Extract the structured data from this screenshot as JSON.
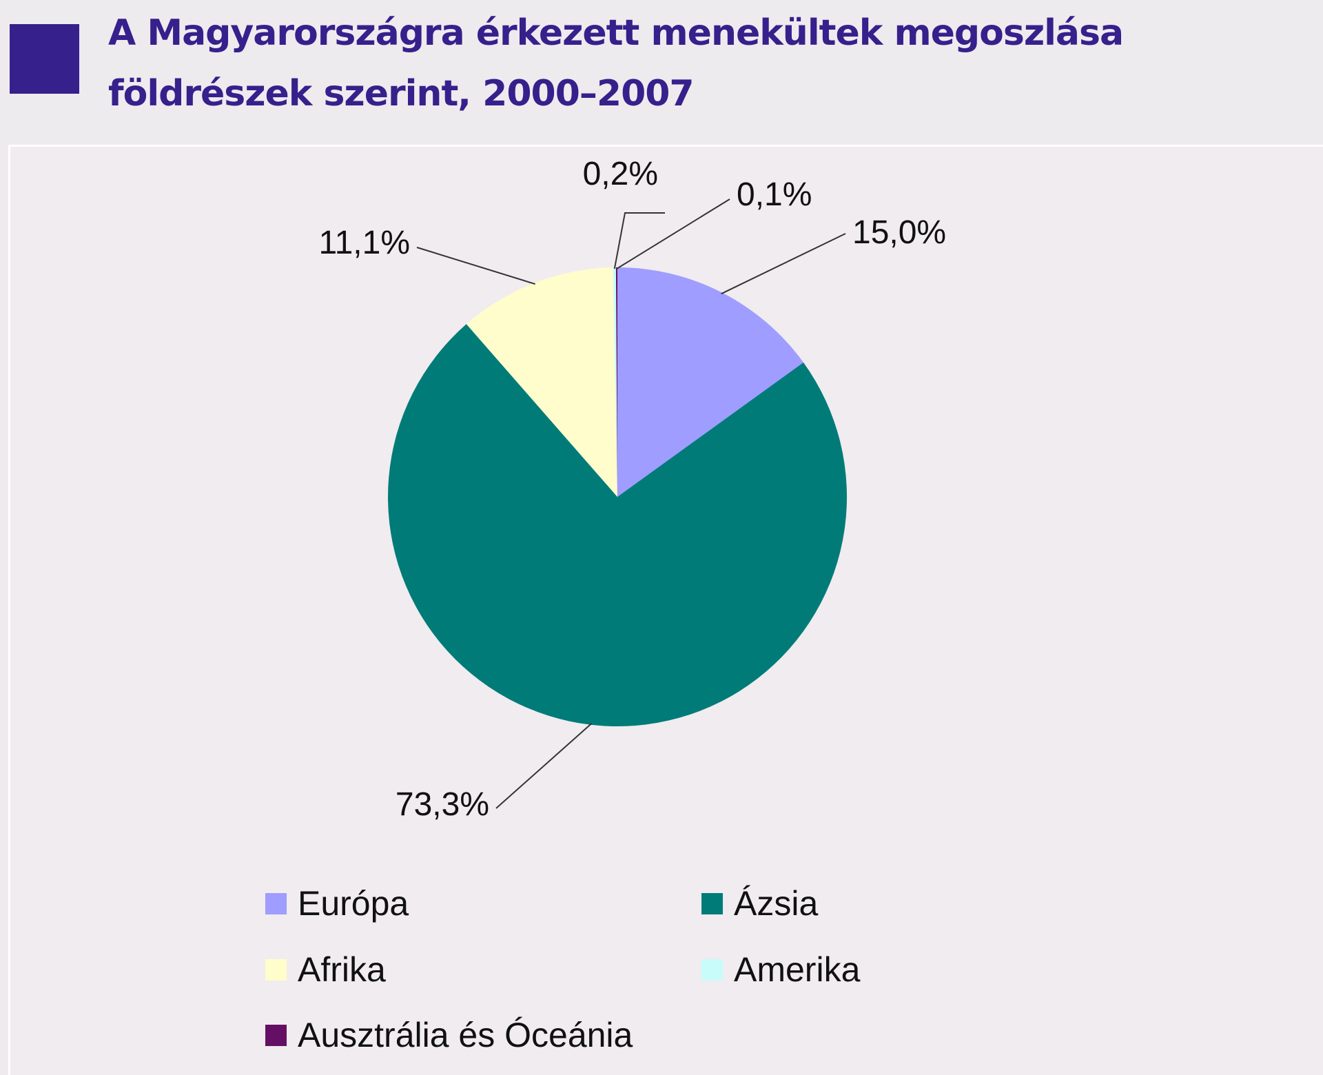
{
  "title": "A Magyarországra érkezett menekültek megoszlása földrészek szerint, 2000–2007",
  "colors": {
    "title": "#36208c",
    "marker": "#36208c",
    "background": "#eeebee"
  },
  "chart_data": {
    "type": "pie",
    "title": "A Magyarországra érkezett menekültek megoszlása földrészek szerint, 2000–2007",
    "unit": "%",
    "legend_position": "bottom",
    "slices": [
      {
        "name": "Európa",
        "value": 15.0,
        "label": "15,0%",
        "color": "#9f9dff"
      },
      {
        "name": "Ázsia",
        "value": 73.3,
        "label": "73,3%",
        "color": "#007b78"
      },
      {
        "name": "Afrika",
        "value": 11.1,
        "label": "11,1%",
        "color": "#fffdcc"
      },
      {
        "name": "Amerika",
        "value": 0.2,
        "label": "0,2%",
        "color": "#c7fcfb"
      },
      {
        "name": "Ausztrália és Óceánia",
        "value": 0.1,
        "label": "0,1%",
        "color": "#650f64"
      }
    ]
  }
}
